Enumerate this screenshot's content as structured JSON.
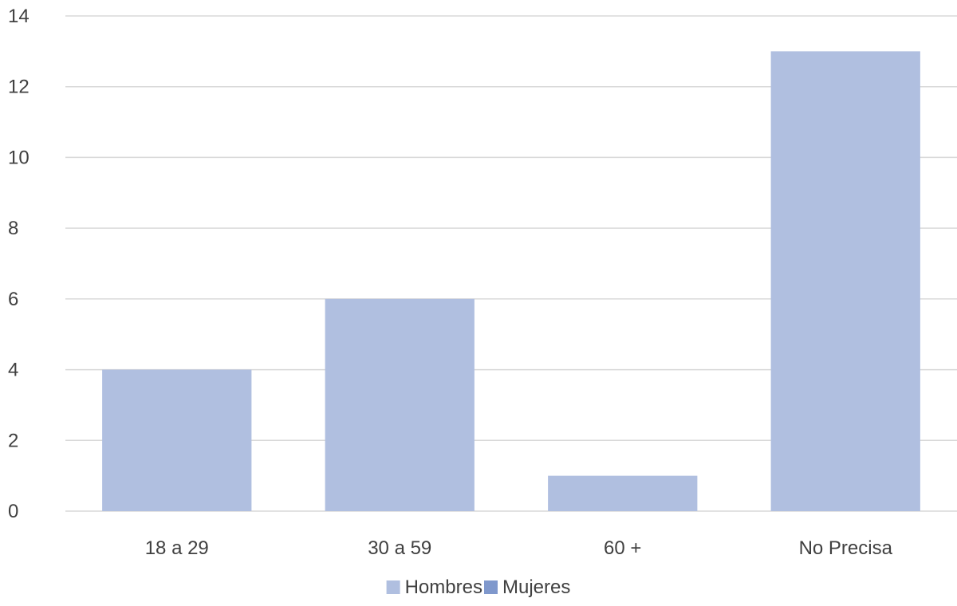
{
  "chart_data": {
    "type": "bar",
    "categories": [
      "18 a 29",
      "30 a 59",
      "60 +",
      "No Precisa"
    ],
    "series": [
      {
        "name": "Hombres",
        "values": [
          4,
          6,
          1,
          13
        ],
        "color": "#b0bfe0"
      },
      {
        "name": "Mujeres",
        "values": [
          0,
          0,
          0,
          0
        ],
        "color": "#7f98cc"
      }
    ],
    "stacked": true,
    "title": "",
    "xlabel": "",
    "ylabel": "",
    "ylim": [
      0,
      14
    ],
    "yticks": [
      "0",
      "2",
      "4",
      "6",
      "8",
      "10",
      "12",
      "14"
    ],
    "grid": true,
    "legend_position": "bottom",
    "colors": {
      "gridline": "#d9d9d9",
      "axis_line": "#d9d9d9",
      "text": "#404040"
    }
  }
}
